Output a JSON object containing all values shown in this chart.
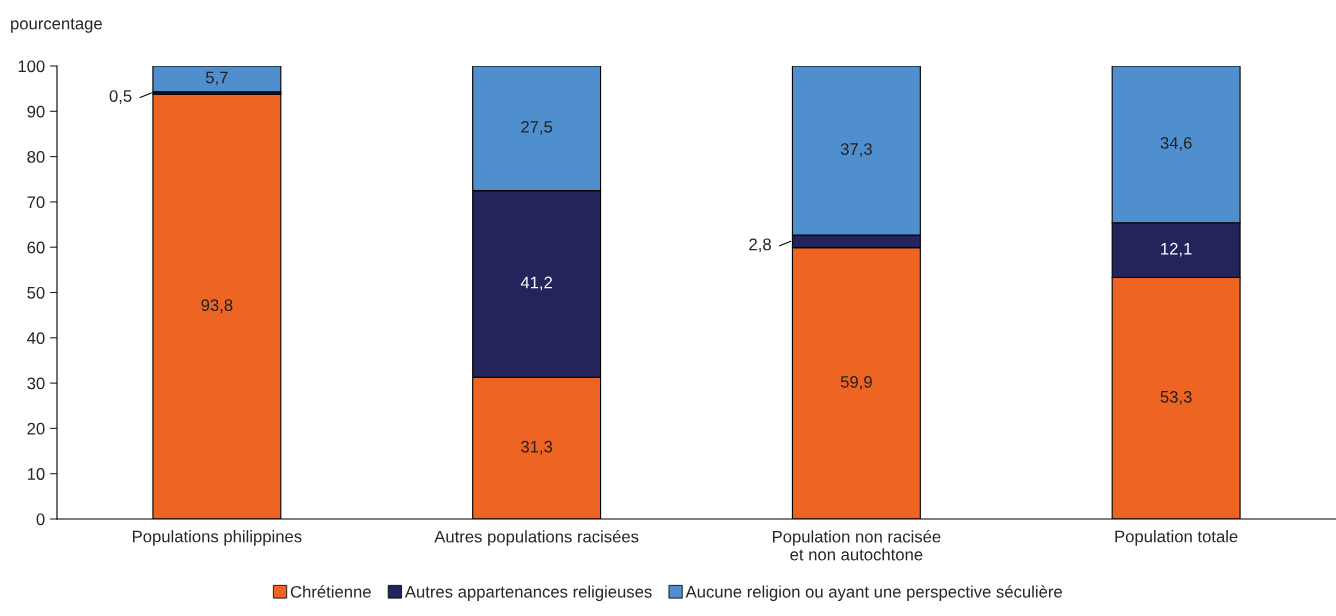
{
  "chart_data": {
    "type": "bar",
    "stacked": true,
    "ylabel": "pourcentage",
    "categories": [
      "Populations philippines",
      "Autres populations racisées",
      "Population non racisée\net non autochtone",
      "Population totale"
    ],
    "series": [
      {
        "name": "Chrétienne",
        "color": "#ee6423",
        "values": [
          93.8,
          31.3,
          59.9,
          53.3
        ],
        "value_labels": [
          "93,8",
          "31,3",
          "59,9",
          "53,3"
        ]
      },
      {
        "name": "Autres appartenances religieuses",
        "color": "#23245c",
        "values": [
          0.5,
          41.2,
          2.8,
          12.1
        ],
        "value_labels": [
          "0,5",
          "41,2",
          "2,8",
          "12,1"
        ]
      },
      {
        "name": "Aucune religion ou ayant une perspective séculière",
        "color": "#4f8fce",
        "values": [
          5.7,
          27.5,
          37.3,
          34.6
        ],
        "value_labels": [
          "5,7",
          "27,5",
          "37,3",
          "34,6"
        ]
      }
    ],
    "ylim": [
      0,
      100
    ],
    "yticks": [
      0,
      10,
      20,
      30,
      40,
      50,
      60,
      70,
      80,
      90,
      100
    ],
    "grid": false,
    "legend": "bottom"
  }
}
